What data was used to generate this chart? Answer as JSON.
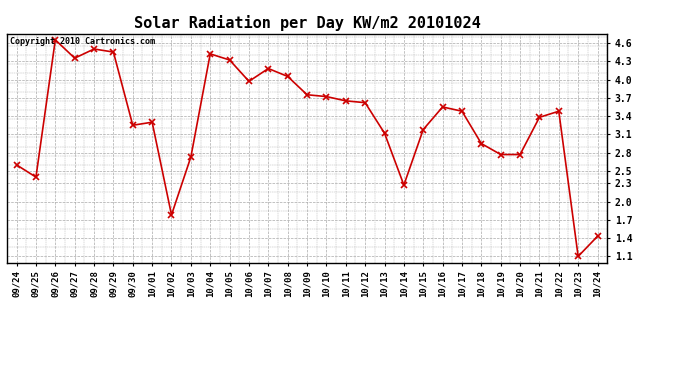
{
  "title": "Solar Radiation per Day KW/m2 20101024",
  "copyright_text": "Copyright 2010 Cartronics.com",
  "dates": [
    "09/24",
    "09/25",
    "09/26",
    "09/27",
    "09/28",
    "09/29",
    "09/30",
    "10/01",
    "10/02",
    "10/03",
    "10/04",
    "10/05",
    "10/06",
    "10/07",
    "10/08",
    "10/09",
    "10/10",
    "10/11",
    "10/12",
    "10/13",
    "10/14",
    "10/15",
    "10/16",
    "10/17",
    "10/18",
    "10/19",
    "10/20",
    "10/21",
    "10/22",
    "10/23",
    "10/24"
  ],
  "values": [
    2.6,
    2.4,
    4.65,
    4.35,
    4.5,
    4.45,
    3.25,
    3.3,
    1.78,
    2.73,
    4.42,
    4.32,
    3.97,
    4.18,
    4.05,
    3.75,
    3.72,
    3.65,
    3.62,
    3.12,
    2.27,
    3.18,
    3.55,
    3.48,
    2.95,
    2.77,
    2.77,
    3.38,
    3.48,
    1.1,
    1.43
  ],
  "line_color": "#cc0000",
  "marker": "x",
  "marker_color": "#cc0000",
  "marker_size": 4,
  "line_width": 1.2,
  "ylim": [
    1.0,
    4.75
  ],
  "yticks": [
    1.1,
    1.4,
    1.7,
    2.0,
    2.3,
    2.5,
    2.8,
    3.1,
    3.4,
    3.7,
    4.0,
    4.3,
    4.6
  ],
  "background_color": "#ffffff",
  "grid_color": "#aaaaaa",
  "title_fontsize": 11,
  "tick_fontsize": 6.5,
  "copyright_fontsize": 6
}
